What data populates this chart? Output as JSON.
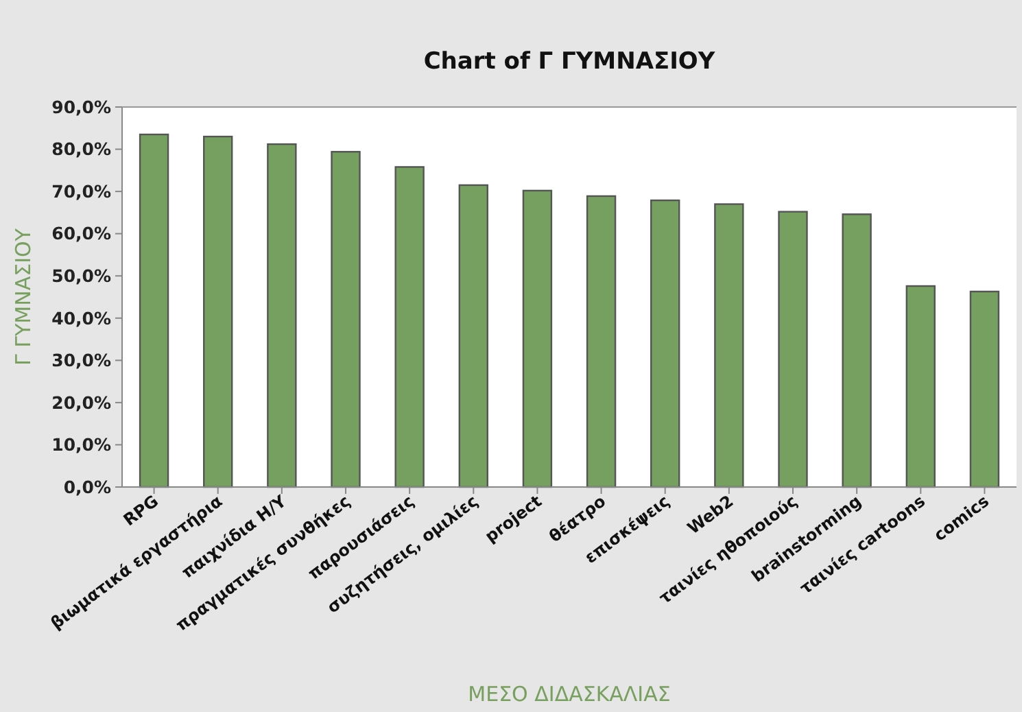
{
  "chart_data": {
    "type": "bar",
    "title": "Chart of Γ ΓΥΜΝΑΣΙΟΥ",
    "xlabel": "ΜΕΣΟ ΔΙΔΑΣΚΑΛΙΑΣ",
    "ylabel": "Γ ΓΥΜΝΑΣΙΟΥ",
    "categories": [
      "RPG",
      "βιωματικά εργαστήρια",
      "παιχνίδια Η/Υ",
      "πραγματικές συνθήκες",
      "παρουσιάσεις",
      "συζητήσεις, ομιλίες",
      "project",
      "θέατρο",
      "επισκέψεις",
      "Web2",
      "ταινίες ηθοποιούς",
      "brainstorming",
      "ταινίες cartoons",
      "comics"
    ],
    "values": [
      83.5,
      83.0,
      81.2,
      79.4,
      75.8,
      71.5,
      70.2,
      68.9,
      67.9,
      67.0,
      65.2,
      64.6,
      47.6,
      46.3
    ],
    "color": "#76a05f",
    "ylim": [
      0,
      90
    ],
    "yticks": [
      {
        "value": 0,
        "label": "0,0%"
      },
      {
        "value": 10,
        "label": "10,0%"
      },
      {
        "value": 20,
        "label": "20,0%"
      },
      {
        "value": 30,
        "label": "30,0%"
      },
      {
        "value": 40,
        "label": "40,0%"
      },
      {
        "value": 50,
        "label": "50,0%"
      },
      {
        "value": 60,
        "label": "60,0%"
      },
      {
        "value": 70,
        "label": "70,0%"
      },
      {
        "value": 80,
        "label": "80,0%"
      },
      {
        "value": 90,
        "label": "90,0%"
      }
    ]
  }
}
